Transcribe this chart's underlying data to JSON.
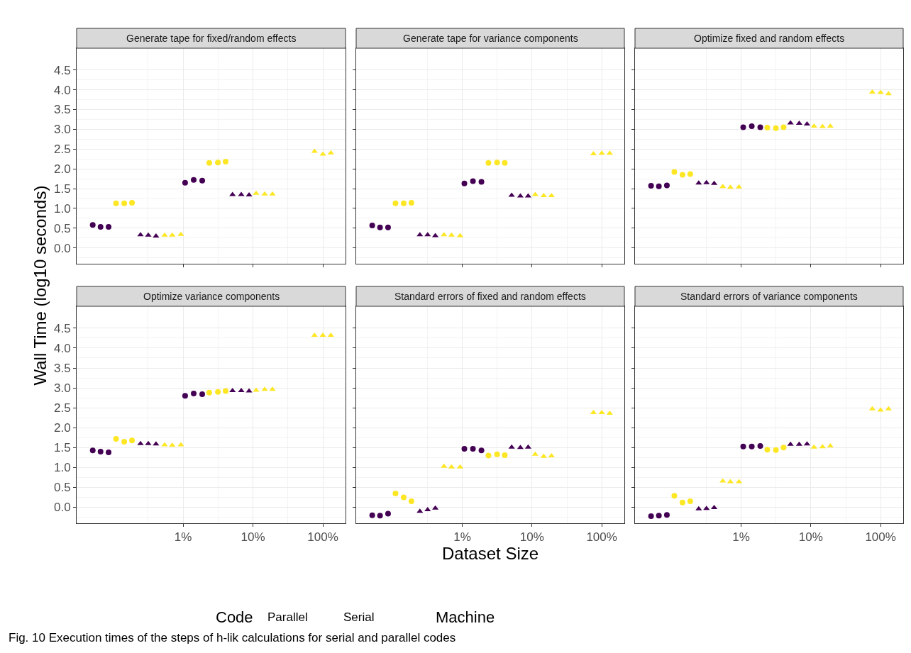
{
  "chart_data": [
    {
      "type": "scatter",
      "title": "Generate tape for fixed/random effects",
      "ylabel": "Wall Time (log10 seconds)",
      "annotations": [
        "Code",
        "Parallel",
        "Serial",
        "Machine",
        "Fig. 10 Execution times of the steps of h-lik calculations for serial and parallel codes"
      ],
      "xlim": [
        0.03,
        211
      ],
      "ylim": [
        -0.4,
        5.05
      ],
      "log": "x",
      "grid": true,
      "tick_labels": "y",
      "xticks": [
        {
          "value": 1,
          "label": null
        },
        {
          "value": 10,
          "label": null
        },
        {
          "value": 100,
          "label": null
        }
      ],
      "yticks": [
        {
          "value": 0,
          "label": "0.0"
        },
        0.5,
        {
          "value": 1,
          "label": "1.0"
        },
        1.5,
        {
          "value": 2,
          "label": "2.0"
        },
        2.5,
        {
          "value": 3,
          "label": "3.0"
        },
        3.5,
        {
          "value": 4,
          "label": "4.0"
        },
        4.5
      ],
      "series": [
        {
          "marker": "circle",
          "color": "#440154",
          "x": [
            0.051,
            0.066,
            0.086,
            1.07,
            1.42,
            1.88
          ],
          "values": [
            0.58,
            0.53,
            0.53,
            1.65,
            1.72,
            1.7
          ]
        },
        {
          "marker": "circle",
          "color": "#fde725",
          "x": [
            0.11,
            0.144,
            0.186,
            2.37,
            3.15,
            4.06
          ],
          "values": [
            1.13,
            1.13,
            1.14,
            2.15,
            2.16,
            2.18
          ]
        },
        {
          "marker": "triangle",
          "color": "#440154",
          "x": [
            0.246,
            0.318,
            0.41,
            5.1,
            6.8,
            8.8
          ],
          "values": [
            0.33,
            0.32,
            0.3,
            1.35,
            1.35,
            1.34
          ]
        },
        {
          "marker": "triangle",
          "color": "#fde725",
          "x": [
            0.545,
            0.7,
            0.93,
            11.1,
            14.7,
            19.0,
            76,
            100,
            130
          ],
          "values": [
            0.32,
            0.32,
            0.34,
            1.38,
            1.36,
            1.36,
            2.44,
            2.37,
            2.4
          ]
        }
      ]
    },
    {
      "type": "scatter",
      "title": "Generate tape for variance components",
      "xlim": [
        0.03,
        211
      ],
      "ylim": [
        -0.4,
        5.05
      ],
      "log": "x",
      "grid": true,
      "tick_labels": false,
      "xticks": [
        {
          "value": 1,
          "label": null
        },
        {
          "value": 10,
          "label": null
        },
        {
          "value": 100,
          "label": null
        }
      ],
      "yticks": [
        {
          "value": 0,
          "label": null
        },
        {
          "value": 0.5,
          "label": null
        },
        {
          "value": 1,
          "label": null
        },
        {
          "value": 1.5,
          "label": null
        },
        {
          "value": 2,
          "label": null
        },
        {
          "value": 2.5,
          "label": null
        },
        {
          "value": 3,
          "label": null
        },
        {
          "value": 3.5,
          "label": null
        },
        {
          "value": 4,
          "label": null
        },
        {
          "value": 4.5,
          "label": null
        }
      ],
      "series": [
        {
          "marker": "circle",
          "color": "#440154",
          "x": [
            0.051,
            0.066,
            0.086,
            1.07,
            1.42,
            1.88
          ],
          "values": [
            0.57,
            0.52,
            0.52,
            1.63,
            1.69,
            1.67
          ]
        },
        {
          "marker": "circle",
          "color": "#fde725",
          "x": [
            0.11,
            0.144,
            0.186,
            2.37,
            3.15,
            4.06
          ],
          "values": [
            1.13,
            1.13,
            1.14,
            2.15,
            2.16,
            2.15
          ]
        },
        {
          "marker": "triangle",
          "color": "#440154",
          "x": [
            0.246,
            0.318,
            0.41,
            5.1,
            6.8,
            8.8
          ],
          "values": [
            0.33,
            0.33,
            0.31,
            1.33,
            1.31,
            1.31
          ]
        },
        {
          "marker": "triangle",
          "color": "#fde725",
          "x": [
            0.545,
            0.7,
            0.93,
            11.1,
            14.7,
            19.0,
            76,
            100,
            130
          ],
          "values": [
            0.33,
            0.32,
            0.31,
            1.35,
            1.32,
            1.32,
            2.38,
            2.39,
            2.39
          ]
        }
      ]
    },
    {
      "type": "scatter",
      "title": "Optimize fixed and random effects",
      "xlim": [
        0.03,
        211
      ],
      "ylim": [
        -0.4,
        5.05
      ],
      "log": "x",
      "grid": true,
      "tick_labels": false,
      "xticks": [
        {
          "value": 1,
          "label": null
        },
        {
          "value": 10,
          "label": null
        },
        {
          "value": 100,
          "label": null
        }
      ],
      "yticks": [
        {
          "value": 0,
          "label": null
        },
        {
          "value": 0.5,
          "label": null
        },
        {
          "value": 1,
          "label": null
        },
        {
          "value": 1.5,
          "label": null
        },
        {
          "value": 2,
          "label": null
        },
        {
          "value": 2.5,
          "label": null
        },
        {
          "value": 3,
          "label": null
        },
        {
          "value": 3.5,
          "label": null
        },
        {
          "value": 4,
          "label": null
        },
        {
          "value": 4.5,
          "label": null
        }
      ],
      "series": [
        {
          "marker": "circle",
          "color": "#440154",
          "x": [
            0.051,
            0.066,
            0.086,
            1.07,
            1.42,
            1.88
          ],
          "values": [
            1.57,
            1.56,
            1.58,
            3.05,
            3.08,
            3.05
          ]
        },
        {
          "marker": "circle",
          "color": "#fde725",
          "x": [
            0.11,
            0.144,
            0.186,
            2.37,
            3.15,
            4.06
          ],
          "values": [
            1.92,
            1.85,
            1.87,
            3.04,
            3.03,
            3.05
          ]
        },
        {
          "marker": "triangle",
          "color": "#440154",
          "x": [
            0.246,
            0.318,
            0.41,
            5.1,
            6.8,
            8.8
          ],
          "values": [
            1.64,
            1.65,
            1.63,
            3.16,
            3.15,
            3.13
          ]
        },
        {
          "marker": "triangle",
          "color": "#fde725",
          "x": [
            0.545,
            0.7,
            0.93,
            11.1,
            14.7,
            19.0,
            76,
            100,
            130
          ],
          "values": [
            1.55,
            1.53,
            1.54,
            3.08,
            3.07,
            3.08,
            3.94,
            3.93,
            3.9
          ]
        }
      ]
    },
    {
      "type": "scatter",
      "title": "Optimize variance components",
      "xlim": [
        0.03,
        211
      ],
      "ylim": [
        -0.4,
        5.05
      ],
      "log": "x",
      "grid": true,
      "xticks": [
        {
          "value": 1,
          "label": "1%"
        },
        {
          "value": 10,
          "label": "10%"
        },
        {
          "value": 100,
          "label": "100%"
        }
      ],
      "yticks": [
        {
          "value": 0,
          "label": "0.0"
        },
        0.5,
        {
          "value": 1,
          "label": "1.0"
        },
        1.5,
        {
          "value": 2,
          "label": "2.0"
        },
        2.5,
        {
          "value": 3,
          "label": "3.0"
        },
        3.5,
        {
          "value": 4,
          "label": "4.0"
        },
        4.5
      ],
      "series": [
        {
          "marker": "circle",
          "color": "#440154",
          "x": [
            0.051,
            0.066,
            0.086,
            1.07,
            1.42,
            1.88
          ],
          "values": [
            1.43,
            1.4,
            1.38,
            2.8,
            2.86,
            2.84
          ]
        },
        {
          "marker": "circle",
          "color": "#fde725",
          "x": [
            0.11,
            0.144,
            0.186,
            2.37,
            3.15,
            4.06
          ],
          "values": [
            1.72,
            1.65,
            1.68,
            2.88,
            2.9,
            2.92
          ]
        },
        {
          "marker": "triangle",
          "color": "#440154",
          "x": [
            0.246,
            0.318,
            0.41,
            5.1,
            6.8,
            8.8
          ],
          "values": [
            1.6,
            1.6,
            1.59,
            2.93,
            2.93,
            2.92
          ]
        },
        {
          "marker": "triangle",
          "color": "#fde725",
          "x": [
            0.545,
            0.7,
            0.93,
            11.1,
            14.7,
            19.0,
            76,
            100,
            130
          ],
          "values": [
            1.57,
            1.56,
            1.57,
            2.94,
            2.96,
            2.96,
            4.32,
            4.32,
            4.32
          ]
        }
      ]
    },
    {
      "type": "scatter",
      "title": "Standard errors of fixed and random effects",
      "xlabel": "Dataset Size",
      "xlim": [
        0.03,
        211
      ],
      "ylim": [
        -0.4,
        5.05
      ],
      "log": "x",
      "grid": true,
      "tick_labels": "x",
      "xticks": [
        {
          "value": 1,
          "label": "1%"
        },
        {
          "value": 10,
          "label": "10%"
        },
        {
          "value": 100,
          "label": "100%"
        }
      ],
      "yticks": [
        {
          "value": 0,
          "label": null
        },
        {
          "value": 0.5,
          "label": null
        },
        {
          "value": 1,
          "label": null
        },
        {
          "value": 1.5,
          "label": null
        },
        {
          "value": 2,
          "label": null
        },
        {
          "value": 2.5,
          "label": null
        },
        {
          "value": 3,
          "label": null
        },
        {
          "value": 3.5,
          "label": null
        },
        {
          "value": 4,
          "label": null
        },
        {
          "value": 4.5,
          "label": null
        }
      ],
      "series": [
        {
          "marker": "circle",
          "color": "#440154",
          "x": [
            0.051,
            0.066,
            0.086,
            1.07,
            1.42,
            1.88
          ],
          "values": [
            -0.2,
            -0.21,
            -0.16,
            1.47,
            1.47,
            1.43
          ]
        },
        {
          "marker": "circle",
          "color": "#fde725",
          "x": [
            0.11,
            0.144,
            0.186,
            2.37,
            3.15,
            4.06
          ],
          "values": [
            0.35,
            0.25,
            0.15,
            1.3,
            1.33,
            1.31
          ]
        },
        {
          "marker": "triangle",
          "color": "#440154",
          "x": [
            0.246,
            0.318,
            0.41,
            5.1,
            6.8,
            8.8
          ],
          "values": [
            -0.1,
            -0.06,
            -0.02,
            1.51,
            1.5,
            1.51
          ]
        },
        {
          "marker": "triangle",
          "color": "#fde725",
          "x": [
            0.545,
            0.7,
            0.93,
            11.1,
            14.7,
            19.0,
            76,
            100,
            130
          ],
          "values": [
            1.03,
            1.01,
            1.01,
            1.33,
            1.28,
            1.29,
            2.38,
            2.38,
            2.36
          ]
        }
      ]
    },
    {
      "type": "scatter",
      "title": "Standard errors of variance components",
      "xlim": [
        0.03,
        211
      ],
      "ylim": [
        -0.4,
        5.05
      ],
      "log": "x",
      "grid": true,
      "tick_labels": "x",
      "xticks": [
        {
          "value": 1,
          "label": "1%"
        },
        {
          "value": 10,
          "label": "10%"
        },
        {
          "value": 100,
          "label": "100%"
        }
      ],
      "yticks": [
        {
          "value": 0,
          "label": null
        },
        {
          "value": 0.5,
          "label": null
        },
        {
          "value": 1,
          "label": null
        },
        {
          "value": 1.5,
          "label": null
        },
        {
          "value": 2,
          "label": null
        },
        {
          "value": 2.5,
          "label": null
        },
        {
          "value": 3,
          "label": null
        },
        {
          "value": 3.5,
          "label": null
        },
        {
          "value": 4,
          "label": null
        },
        {
          "value": 4.5,
          "label": null
        }
      ],
      "series": [
        {
          "marker": "circle",
          "color": "#440154",
          "x": [
            0.051,
            0.066,
            0.086,
            1.07,
            1.42,
            1.88
          ],
          "values": [
            -0.22,
            -0.21,
            -0.19,
            1.53,
            1.53,
            1.54
          ]
        },
        {
          "marker": "circle",
          "color": "#fde725",
          "x": [
            0.11,
            0.144,
            0.186,
            2.37,
            3.15,
            4.06
          ],
          "values": [
            0.29,
            0.12,
            0.15,
            1.45,
            1.44,
            1.5
          ]
        },
        {
          "marker": "triangle",
          "color": "#440154",
          "x": [
            0.246,
            0.318,
            0.41,
            5.1,
            6.8,
            8.8
          ],
          "values": [
            -0.04,
            -0.03,
            -0.01,
            1.58,
            1.58,
            1.59
          ]
        },
        {
          "marker": "triangle",
          "color": "#fde725",
          "x": [
            0.545,
            0.7,
            0.93,
            11.1,
            14.7,
            19.0,
            76,
            100,
            130
          ],
          "values": [
            0.66,
            0.64,
            0.64,
            1.51,
            1.52,
            1.54,
            2.47,
            2.44,
            2.47
          ]
        }
      ]
    }
  ]
}
